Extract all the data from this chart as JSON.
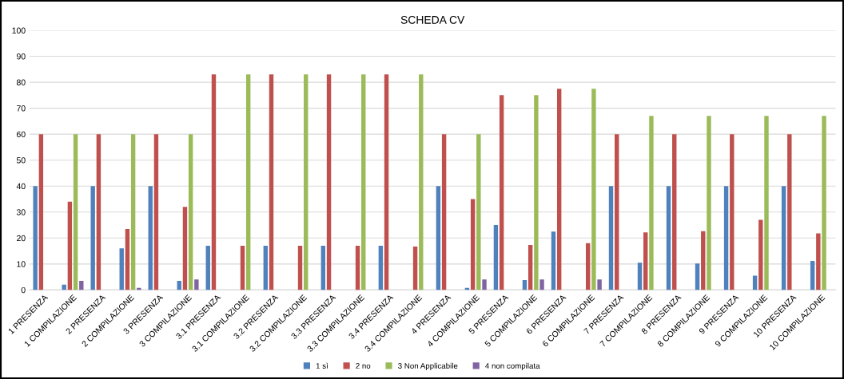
{
  "chart_data": {
    "type": "bar",
    "title": "SCHEDA CV",
    "categories": [
      "1 PRESENZA",
      "1 COMPILAZIONE",
      "2 PRESENZA",
      "2 COMPILAZIONE",
      "3 PRESENZA",
      "3 COMPILAZIONE",
      "3.1 PRESENZA",
      "3.1 COMPILAZIONE",
      "3.2 PRESENZA",
      "3.2 COMPILAZIONE",
      "3.3 PRESENZA",
      "3.3 COMPILAZIONE",
      "3.4 PRESENZA",
      "3.4 COMPILAZIONE",
      "4 PRESENZA",
      "4 COMPILAZIONE",
      "5 PRESENZA",
      "5 COMPILAZIONE",
      "6 PRESENZA",
      "6 COMPILAZIONE",
      "7 PRESENZA",
      "7 COMPILAZIONE",
      "8 PRESENZA",
      "8 COMPILAZIONE",
      "9 PRESENZA",
      "9 COMPILAZIONE",
      "10 PRESENZA",
      "10 COMPILAZIONE"
    ],
    "series": [
      {
        "name": "1 sì",
        "color": "#4f81bd",
        "values": [
          40,
          2,
          40,
          16,
          40,
          3.5,
          17,
          null,
          17,
          null,
          17,
          null,
          17,
          null,
          40,
          0.8,
          25,
          3.8,
          22.5,
          null,
          40,
          10.5,
          40,
          10.2,
          40,
          5.5,
          40,
          11.2
        ]
      },
      {
        "name": "2 no",
        "color": "#c0504d",
        "values": [
          60,
          34,
          60,
          23.5,
          60,
          32,
          83,
          17,
          83,
          17,
          83,
          17,
          83,
          16.7,
          60,
          35,
          75,
          17.3,
          77.5,
          18,
          60,
          22.2,
          60,
          22.6,
          60,
          27,
          60,
          21.8
        ]
      },
      {
        "name": "3 Non Applicabile",
        "color": "#9bbb59",
        "values": [
          null,
          60,
          null,
          60,
          null,
          60,
          null,
          83,
          null,
          83,
          null,
          83,
          null,
          83,
          null,
          60,
          null,
          75,
          null,
          77.5,
          null,
          67,
          null,
          67,
          null,
          67,
          null,
          67
        ]
      },
      {
        "name": "4 non compilata",
        "color": "#8064a2",
        "values": [
          null,
          3.5,
          null,
          0.8,
          null,
          4,
          null,
          null,
          null,
          null,
          null,
          null,
          null,
          null,
          null,
          4,
          null,
          4,
          null,
          4,
          null,
          null,
          null,
          null,
          null,
          null,
          null,
          null
        ]
      }
    ],
    "ylim": [
      0,
      100
    ],
    "yticks": [
      0,
      10,
      20,
      30,
      40,
      50,
      60,
      70,
      80,
      90,
      100
    ],
    "grid": "y",
    "legend": "bottom"
  }
}
